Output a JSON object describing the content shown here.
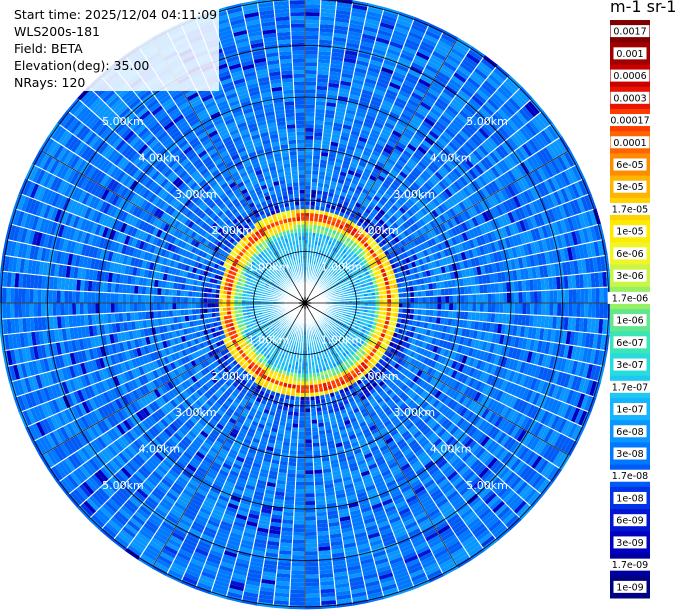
{
  "header": {
    "start_time": "Start time: 2025/12/04 04:11:09",
    "instrument": "WLS200s-181",
    "field": "Field: BETA",
    "elevation": "Elevation(deg): 35.00",
    "nrays": "NRays: 120"
  },
  "colorbar": {
    "unit_label": "m-1 sr-1",
    "ticks": [
      "0.0017",
      "0.001",
      "0.0006",
      "0.0003",
      "0.00017",
      "0.0001",
      "6e-05",
      "3e-05",
      "1.7e-05",
      "1e-05",
      "6e-06",
      "3e-06",
      "1.7e-06",
      "1e-06",
      "6e-07",
      "3e-07",
      "1.7e-07",
      "1e-07",
      "6e-08",
      "3e-08",
      "1.7e-08",
      "1e-08",
      "6e-09",
      "3e-09",
      "1.7e-09",
      "1e-09"
    ],
    "colors": [
      "#7f0000",
      "#a00000",
      "#c80000",
      "#e61400",
      "#ff3c00",
      "#ff6400",
      "#ff8c00",
      "#ffb400",
      "#ffd200",
      "#ffeb00",
      "#f0f528",
      "#c8f546",
      "#96f064",
      "#64e68c",
      "#3ce6b4",
      "#28dcdc",
      "#1ec8f0",
      "#14b4ff",
      "#0a96ff",
      "#0078ff",
      "#005af5",
      "#0032e6",
      "#0014d2",
      "#0000be",
      "#0000a0",
      "#000082"
    ]
  },
  "chart_data": {
    "type": "heatmap",
    "subtype": "ppi-polar",
    "title": "",
    "field": "BETA",
    "elevation_deg": 35.0,
    "nrays": 120,
    "range_rings_km": [
      1.0,
      2.0,
      3.0,
      4.0,
      5.0
    ],
    "range_ring_labels": [
      "1.00km",
      "2.00km",
      "3.00km",
      "4.00km",
      "5.00km"
    ],
    "max_range_km": 5.9,
    "aerosol_layer": {
      "inner_edge_km": 1.45,
      "peak_km": 1.62,
      "outer_edge_km": 1.8,
      "peak_value": 0.0003
    },
    "near_field_value": 6e-08,
    "background_value": 3e-08,
    "colorscale": "log"
  }
}
